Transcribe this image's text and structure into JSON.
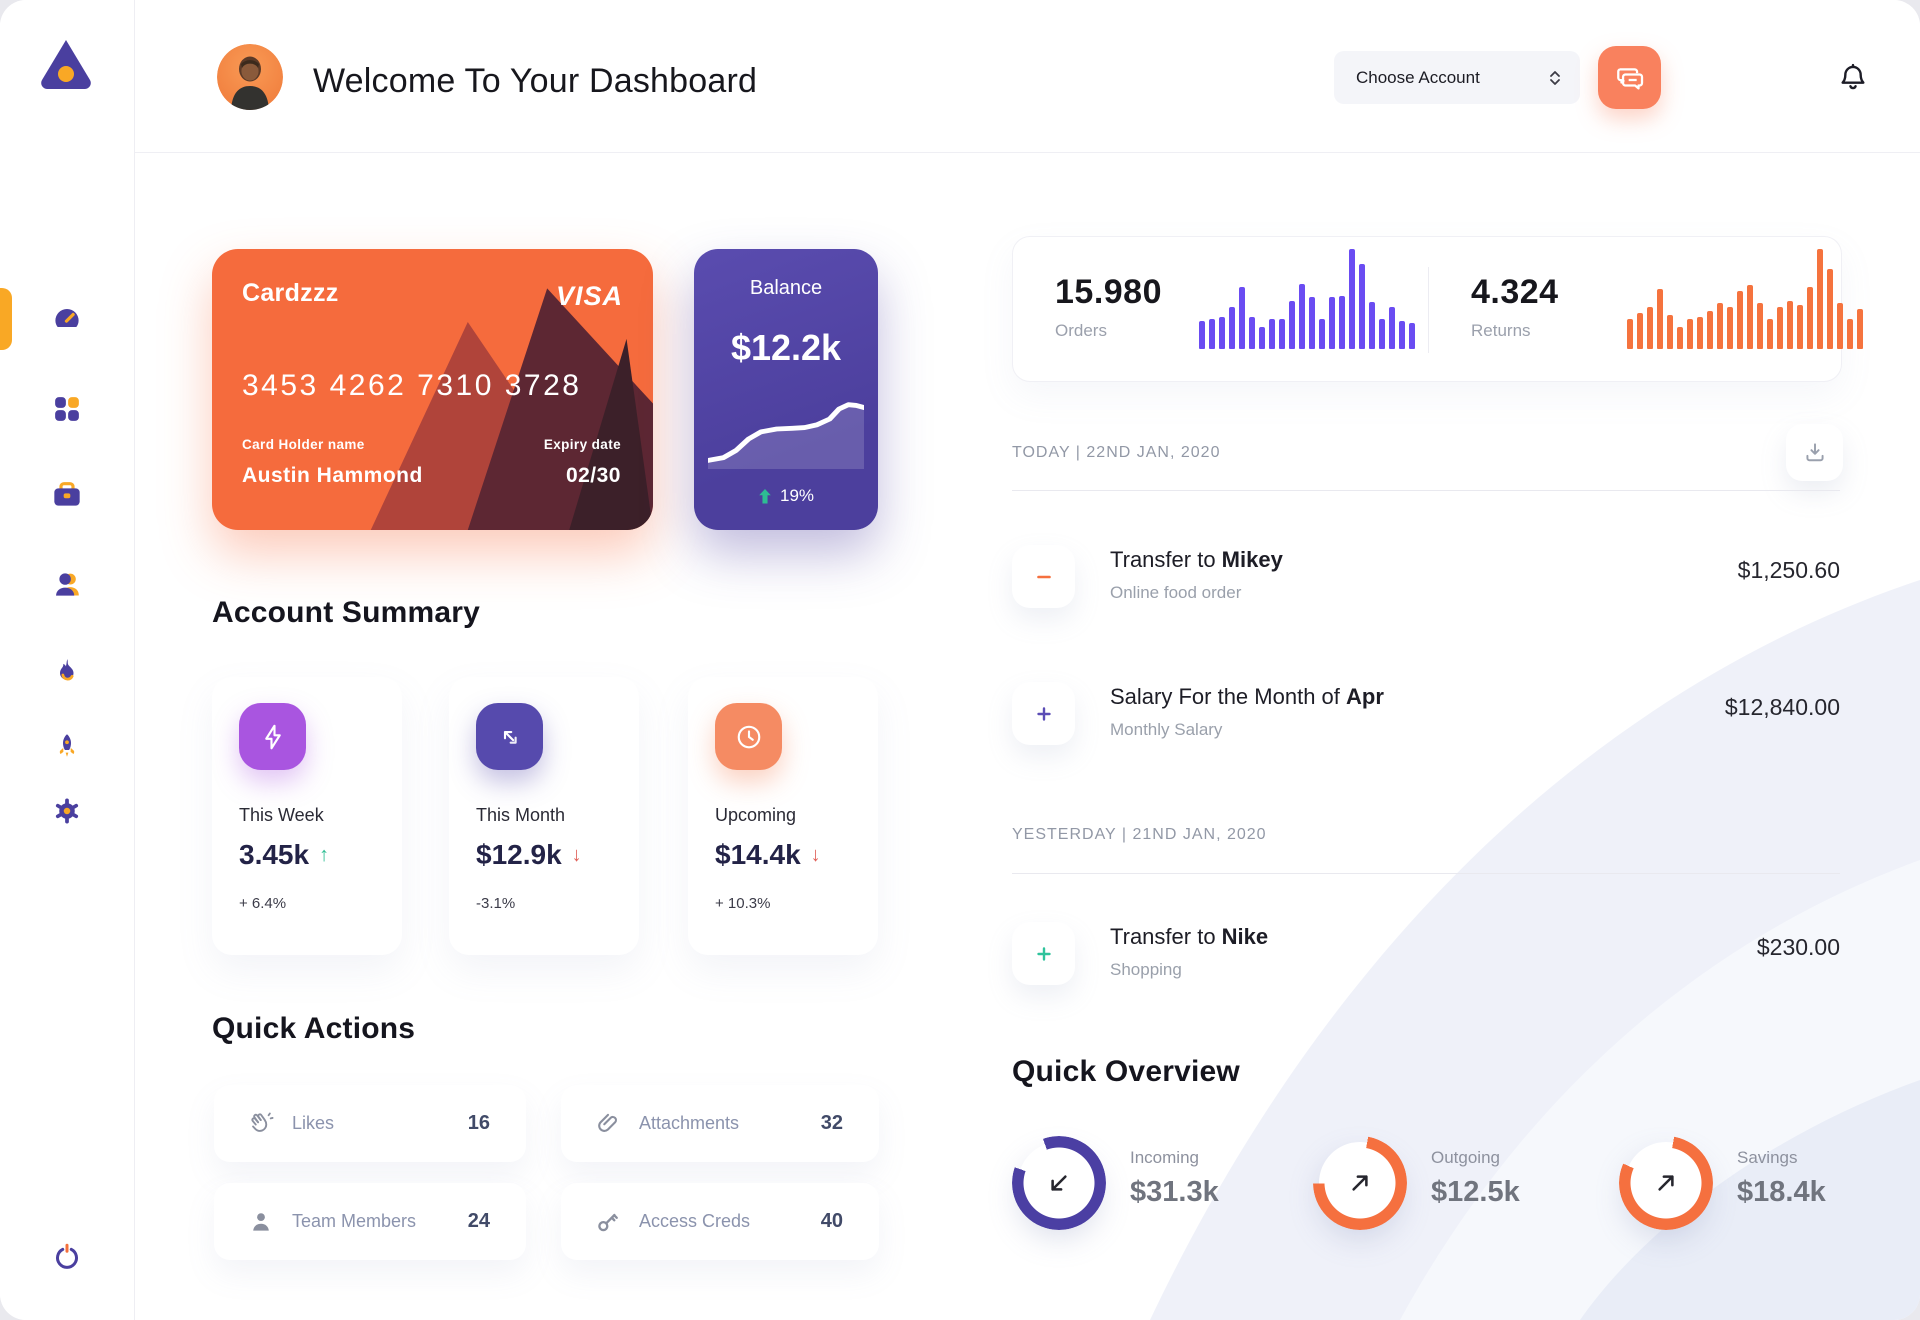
{
  "header": {
    "title": "Welcome To Your Dashboard",
    "account_selector_label": "Choose Account"
  },
  "sidebar": {
    "items": [
      {
        "name": "dashboard",
        "active": true
      },
      {
        "name": "apps"
      },
      {
        "name": "work"
      },
      {
        "name": "people"
      },
      {
        "name": "trending"
      },
      {
        "name": "launch"
      },
      {
        "name": "settings"
      },
      {
        "name": "logout"
      }
    ]
  },
  "credit_card": {
    "name": "Cardzzz",
    "brand": "VISA",
    "number": "3453 4262 7310 3728",
    "holder_label": "Card Holder name",
    "holder_name": "Austin Hammond",
    "expiry_label": "Expiry date",
    "expiry": "02/30"
  },
  "balance_card": {
    "title": "Balance",
    "value": "$12.2k",
    "change": "19%"
  },
  "stats": {
    "orders": {
      "value": "15.980",
      "label": "Orders"
    },
    "returns": {
      "value": "4.324",
      "label": "Returns"
    }
  },
  "account_summary": {
    "title": "Account Summary",
    "cards": [
      {
        "label": "This Week",
        "value": "3.45k",
        "delta": "+ 6.4%",
        "trend": "up"
      },
      {
        "label": "This Month",
        "value": "$12.9k",
        "delta": "-3.1%",
        "trend": "down"
      },
      {
        "label": "Upcoming",
        "value": "$14.4k",
        "delta": "+ 10.3%",
        "trend": "down"
      }
    ]
  },
  "quick_actions": {
    "title": "Quick Actions",
    "items": [
      {
        "label": "Likes",
        "count": "16"
      },
      {
        "label": "Attachments",
        "count": "32"
      },
      {
        "label": "Team Members",
        "count": "24"
      },
      {
        "label": "Access Creds",
        "count": "40"
      }
    ]
  },
  "transactions": {
    "groups": [
      {
        "date_label": "TODAY | 22ND JAN, 2020",
        "rows": [
          {
            "sign": "minus",
            "title_prefix": "Transfer to ",
            "title_bold": "Mikey",
            "subtitle": "Online food order",
            "amount": "$1,250.60"
          },
          {
            "sign": "plus-purple",
            "title_prefix": "Salary For the Month of ",
            "title_bold": "Apr",
            "subtitle": "Monthly Salary",
            "amount": "$12,840.00"
          }
        ]
      },
      {
        "date_label": "YESTERDAY | 21ND JAN, 2020",
        "rows": [
          {
            "sign": "plus-green",
            "title_prefix": "Transfer to ",
            "title_bold": "Nike",
            "subtitle": "Shopping",
            "amount": "$230.00"
          }
        ]
      }
    ]
  },
  "quick_overview": {
    "title": "Quick Overview",
    "items": [
      {
        "label": "Incoming",
        "value": "$31.3k",
        "direction": "down-left"
      },
      {
        "label": "Outgoing",
        "value": "$12.5k",
        "direction": "up-right"
      },
      {
        "label": "Savings",
        "value": "$18.4k",
        "direction": "up-right"
      }
    ]
  },
  "chart_data": [
    {
      "id": "orders_spark",
      "type": "bar",
      "color": "#6A4CF2",
      "title": "Orders activity sparkline",
      "ylim": [
        0,
        100
      ],
      "values": [
        28,
        30,
        32,
        42,
        62,
        32,
        22,
        30,
        30,
        48,
        65,
        52,
        30,
        52,
        53,
        100,
        85,
        47,
        30,
        42,
        28,
        26
      ]
    },
    {
      "id": "returns_spark",
      "type": "bar",
      "color": "#F5733E",
      "title": "Returns activity sparkline",
      "ylim": [
        0,
        100
      ],
      "values": [
        30,
        36,
        42,
        60,
        34,
        22,
        30,
        32,
        38,
        46,
        42,
        58,
        64,
        46,
        30,
        42,
        48,
        44,
        62,
        100,
        80,
        46,
        30,
        40
      ]
    },
    {
      "id": "balance_trend",
      "type": "line",
      "color": "#FFFFFF",
      "title": "Balance trend",
      "xlim": [
        0,
        100
      ],
      "ylim": [
        0,
        56
      ],
      "points": [
        [
          0,
          50
        ],
        [
          10,
          48
        ],
        [
          18,
          43
        ],
        [
          26,
          35
        ],
        [
          34,
          30
        ],
        [
          44,
          28
        ],
        [
          54,
          27.5
        ],
        [
          62,
          27
        ],
        [
          70,
          25
        ],
        [
          78,
          21
        ],
        [
          84,
          14
        ],
        [
          90,
          11
        ],
        [
          95,
          11.5
        ],
        [
          100,
          13
        ]
      ]
    },
    {
      "id": "overview_rings",
      "type": "pie",
      "title": "Quick overview progress rings",
      "items": [
        {
          "label": "Incoming",
          "percent": 86,
          "color": "#4B3FA3",
          "start_deg": -20
        },
        {
          "label": "Outgoing",
          "percent": 72,
          "color": "#F5703F",
          "start_deg": 10
        },
        {
          "label": "Savings",
          "percent": 79,
          "color": "#F5703F",
          "start_deg": 10
        }
      ]
    }
  ]
}
